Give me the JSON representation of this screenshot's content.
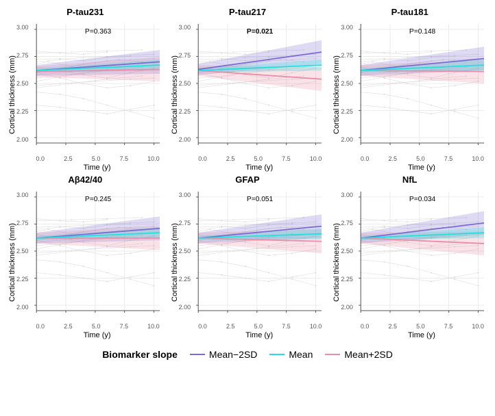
{
  "layout": {
    "rows": 2,
    "cols": 3
  },
  "axes": {
    "xlim": [
      0,
      10.5
    ],
    "ylim": [
      1.95,
      3.05
    ],
    "xticks": [
      0.0,
      2.5,
      5.0,
      7.5,
      10.0
    ],
    "yticks": [
      2.0,
      2.25,
      2.5,
      2.75,
      3.0
    ],
    "xtick_labels": [
      "0.0",
      "2.5",
      "5.0",
      "7.5",
      "10.0"
    ],
    "ytick_labels": [
      "2.00",
      "2.25",
      "2.50",
      "2.75",
      "3.00"
    ],
    "xlabel": "Time (y)",
    "ylabel": "Cortical thickness (mm)",
    "grid_color": "#ebebeb",
    "panel_bg": "#ffffff",
    "axis_color": "#555555",
    "tick_fontsize": 9,
    "label_fontsize": 11,
    "title_fontsize": 13
  },
  "colors": {
    "mean_minus_2sd": "#7b6bd1",
    "mean": "#22e0e0",
    "mean_plus_2sd": "#e78fa8",
    "ribbon_alpha": 0.25,
    "spaghetti": "#cfcfcf"
  },
  "legend": {
    "title": "Biomarker slope",
    "items": [
      {
        "key": "mean_minus_2sd",
        "label": "Mean−2SD"
      },
      {
        "key": "mean",
        "label": "Mean"
      },
      {
        "key": "mean_plus_2sd",
        "label": "Mean+2SD"
      }
    ]
  },
  "panels": [
    {
      "title": "P-tau231",
      "pvalue": "P=0.363",
      "p_bold": false,
      "lines": {
        "mean_minus_2sd": {
          "y0": 2.62,
          "y1": 2.7,
          "ci0": 0.05,
          "ci1": 0.11
        },
        "mean": {
          "y0": 2.62,
          "y1": 2.67,
          "ci0": 0.02,
          "ci1": 0.05
        },
        "mean_plus_2sd": {
          "y0": 2.61,
          "y1": 2.63,
          "ci0": 0.05,
          "ci1": 0.11
        }
      }
    },
    {
      "title": "P-tau217",
      "pvalue": "P=0.021",
      "p_bold": true,
      "lines": {
        "mean_minus_2sd": {
          "y0": 2.63,
          "y1": 2.79,
          "ci0": 0.05,
          "ci1": 0.11
        },
        "mean": {
          "y0": 2.62,
          "y1": 2.67,
          "ci0": 0.02,
          "ci1": 0.05
        },
        "mean_plus_2sd": {
          "y0": 2.62,
          "y1": 2.54,
          "ci0": 0.05,
          "ci1": 0.11
        }
      }
    },
    {
      "title": "P-tau181",
      "pvalue": "P=0.148",
      "p_bold": false,
      "lines": {
        "mean_minus_2sd": {
          "y0": 2.62,
          "y1": 2.73,
          "ci0": 0.05,
          "ci1": 0.11
        },
        "mean": {
          "y0": 2.62,
          "y1": 2.67,
          "ci0": 0.02,
          "ci1": 0.05
        },
        "mean_plus_2sd": {
          "y0": 2.62,
          "y1": 2.61,
          "ci0": 0.05,
          "ci1": 0.11
        }
      }
    },
    {
      "title": "Aβ42/40",
      "pvalue": "P=0.245",
      "p_bold": false,
      "lines": {
        "mean_minus_2sd": {
          "y0": 2.62,
          "y1": 2.71,
          "ci0": 0.05,
          "ci1": 0.11
        },
        "mean": {
          "y0": 2.62,
          "y1": 2.67,
          "ci0": 0.02,
          "ci1": 0.05
        },
        "mean_plus_2sd": {
          "y0": 2.62,
          "y1": 2.62,
          "ci0": 0.05,
          "ci1": 0.11
        }
      }
    },
    {
      "title": "GFAP",
      "pvalue": "P=0.051",
      "p_bold": false,
      "lines": {
        "mean_minus_2sd": {
          "y0": 2.62,
          "y1": 2.73,
          "ci0": 0.05,
          "ci1": 0.11
        },
        "mean": {
          "y0": 2.62,
          "y1": 2.66,
          "ci0": 0.02,
          "ci1": 0.05
        },
        "mean_plus_2sd": {
          "y0": 2.62,
          "y1": 2.59,
          "ci0": 0.05,
          "ci1": 0.11
        }
      }
    },
    {
      "title": "NfL",
      "pvalue": "P=0.034",
      "p_bold": false,
      "lines": {
        "mean_minus_2sd": {
          "y0": 2.62,
          "y1": 2.76,
          "ci0": 0.05,
          "ci1": 0.11
        },
        "mean": {
          "y0": 2.62,
          "y1": 2.67,
          "ci0": 0.02,
          "ci1": 0.05
        },
        "mean_plus_2sd": {
          "y0": 2.62,
          "y1": 2.57,
          "ci0": 0.05,
          "ci1": 0.11
        }
      }
    }
  ],
  "spaghetti": [
    [
      [
        0,
        2.6
      ],
      [
        2,
        2.64
      ],
      [
        4,
        2.68
      ],
      [
        6,
        2.71
      ],
      [
        8,
        2.72
      ],
      [
        10,
        2.73
      ]
    ],
    [
      [
        0,
        2.7
      ],
      [
        2,
        2.72
      ],
      [
        4,
        2.74
      ],
      [
        6,
        2.75
      ],
      [
        8,
        2.76
      ],
      [
        10,
        2.77
      ]
    ],
    [
      [
        0,
        2.55
      ],
      [
        3,
        2.58
      ],
      [
        6,
        2.62
      ],
      [
        9,
        2.65
      ]
    ],
    [
      [
        0,
        2.48
      ],
      [
        2,
        2.5
      ],
      [
        5,
        2.52
      ],
      [
        8,
        2.54
      ],
      [
        10,
        2.55
      ]
    ],
    [
      [
        0,
        2.42
      ],
      [
        2,
        2.4
      ],
      [
        4,
        2.36
      ],
      [
        6,
        2.3
      ],
      [
        8,
        2.24
      ],
      [
        10,
        2.18
      ]
    ],
    [
      [
        0,
        2.3
      ],
      [
        2,
        2.28
      ],
      [
        4,
        2.25
      ],
      [
        6,
        2.22
      ],
      [
        8,
        2.26
      ],
      [
        10,
        2.3
      ]
    ],
    [
      [
        0,
        2.65
      ],
      [
        2,
        2.62
      ],
      [
        4,
        2.58
      ],
      [
        6,
        2.55
      ],
      [
        8,
        2.6
      ],
      [
        10,
        2.64
      ]
    ],
    [
      [
        0,
        2.78
      ],
      [
        3,
        2.79
      ],
      [
        6,
        2.8
      ],
      [
        9,
        2.81
      ]
    ],
    [
      [
        0,
        2.52
      ],
      [
        2,
        2.56
      ],
      [
        4,
        2.6
      ],
      [
        6,
        2.63
      ],
      [
        8,
        2.66
      ]
    ],
    [
      [
        0,
        2.68
      ],
      [
        1,
        2.7
      ],
      [
        3,
        2.66
      ],
      [
        5,
        2.69
      ],
      [
        7,
        2.72
      ],
      [
        9,
        2.7
      ]
    ],
    [
      [
        0,
        2.6
      ],
      [
        2,
        2.55
      ],
      [
        4,
        2.5
      ],
      [
        6,
        2.46
      ],
      [
        8,
        2.48
      ],
      [
        10,
        2.52
      ]
    ],
    [
      [
        0,
        2.72
      ],
      [
        2,
        2.73
      ],
      [
        4,
        2.71
      ],
      [
        6,
        2.74
      ],
      [
        8,
        2.75
      ]
    ],
    [
      [
        0,
        2.58
      ],
      [
        3,
        2.61
      ],
      [
        6,
        2.63
      ],
      [
        9,
        2.62
      ],
      [
        10,
        2.64
      ]
    ],
    [
      [
        0,
        2.8
      ],
      [
        2,
        2.78
      ],
      [
        4,
        2.77
      ],
      [
        6,
        2.79
      ]
    ],
    [
      [
        0,
        2.46
      ],
      [
        3,
        2.5
      ],
      [
        6,
        2.54
      ],
      [
        9,
        2.57
      ]
    ]
  ]
}
